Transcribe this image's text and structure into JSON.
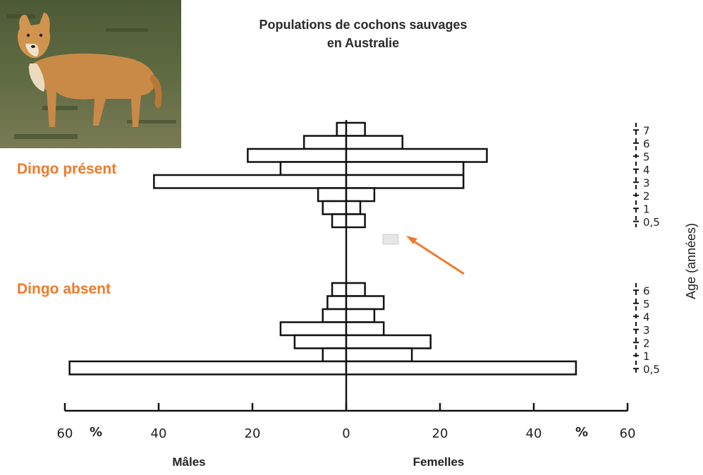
{
  "photo": {
    "subject": "dingo"
  },
  "title_line1": "Populations de cochons sauvages",
  "title_line2": "en Australie",
  "accent_color": "#f07a2a",
  "chart_data": {
    "type": "bar",
    "orientation": "horizontal",
    "subtype": "population-pyramid",
    "x_ticks_left": [
      "60",
      "40",
      "20",
      "0"
    ],
    "x_ticks_right": [
      "20",
      "40",
      "60"
    ],
    "x_unit": "%",
    "xlim": [
      -60,
      60
    ],
    "xlabel_left": "Mâles",
    "xlabel_right": "Femelles",
    "ylabel": "Age (années)",
    "groups": [
      {
        "name": "Dingo présent",
        "categories": [
          "7",
          "6",
          "5",
          "4",
          "3",
          "2",
          "1",
          "0,5"
        ],
        "series": [
          {
            "name": "Mâles",
            "values": [
              2,
              9,
              21,
              14,
              41,
              6,
              5,
              3
            ]
          },
          {
            "name": "Femelles",
            "values": [
              4,
              12,
              30,
              25,
              25,
              6,
              3,
              4
            ]
          }
        ]
      },
      {
        "name": "Dingo absent",
        "categories": [
          "6",
          "5",
          "4",
          "3",
          "2",
          "1",
          "0,5"
        ],
        "series": [
          {
            "name": "Mâles",
            "values": [
              3,
              4,
              5,
              14,
              11,
              5,
              59
            ]
          },
          {
            "name": "Femelles",
            "values": [
              4,
              8,
              6,
              8,
              18,
              14,
              49
            ]
          }
        ]
      }
    ]
  }
}
